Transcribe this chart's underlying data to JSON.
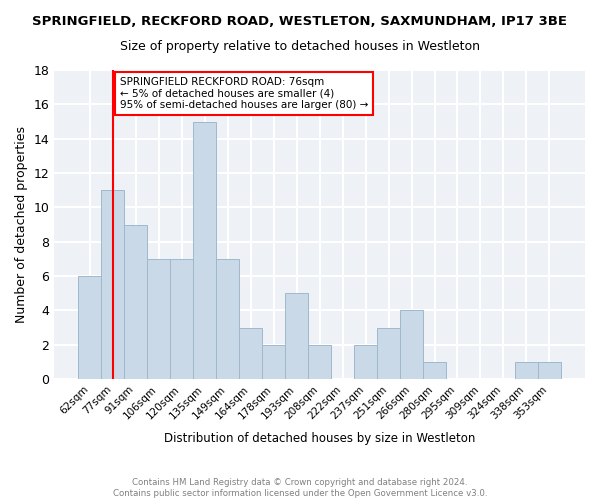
{
  "title": "SPRINGFIELD, RECKFORD ROAD, WESTLETON, SAXMUNDHAM, IP17 3BE",
  "subtitle": "Size of property relative to detached houses in Westleton",
  "xlabel": "Distribution of detached houses by size in Westleton",
  "ylabel": "Number of detached properties",
  "bin_labels": [
    "62sqm",
    "77sqm",
    "91sqm",
    "106sqm",
    "120sqm",
    "135sqm",
    "149sqm",
    "164sqm",
    "178sqm",
    "193sqm",
    "208sqm",
    "222sqm",
    "237sqm",
    "251sqm",
    "266sqm",
    "280sqm",
    "295sqm",
    "309sqm",
    "324sqm",
    "338sqm",
    "353sqm"
  ],
  "bar_heights": [
    6,
    11,
    9,
    7,
    7,
    15,
    7,
    3,
    2,
    5,
    2,
    0,
    2,
    3,
    4,
    1,
    0,
    0,
    0,
    1,
    1
  ],
  "bar_color": "#c9d9e8",
  "bar_edge_color": "#a0b8cc",
  "annotation_text": "SPRINGFIELD RECKFORD ROAD: 76sqm\n← 5% of detached houses are smaller (4)\n95% of semi-detached houses are larger (80) →",
  "annotation_box_color": "white",
  "annotation_box_edge": "red",
  "vline_x": 1,
  "vline_color": "red",
  "ylim": [
    0,
    18
  ],
  "yticks": [
    0,
    2,
    4,
    6,
    8,
    10,
    12,
    14,
    16,
    18
  ],
  "footnote": "Contains HM Land Registry data © Crown copyright and database right 2024.\nContains public sector information licensed under the Open Government Licence v3.0.",
  "bg_color": "#eef2f7",
  "grid_color": "white"
}
